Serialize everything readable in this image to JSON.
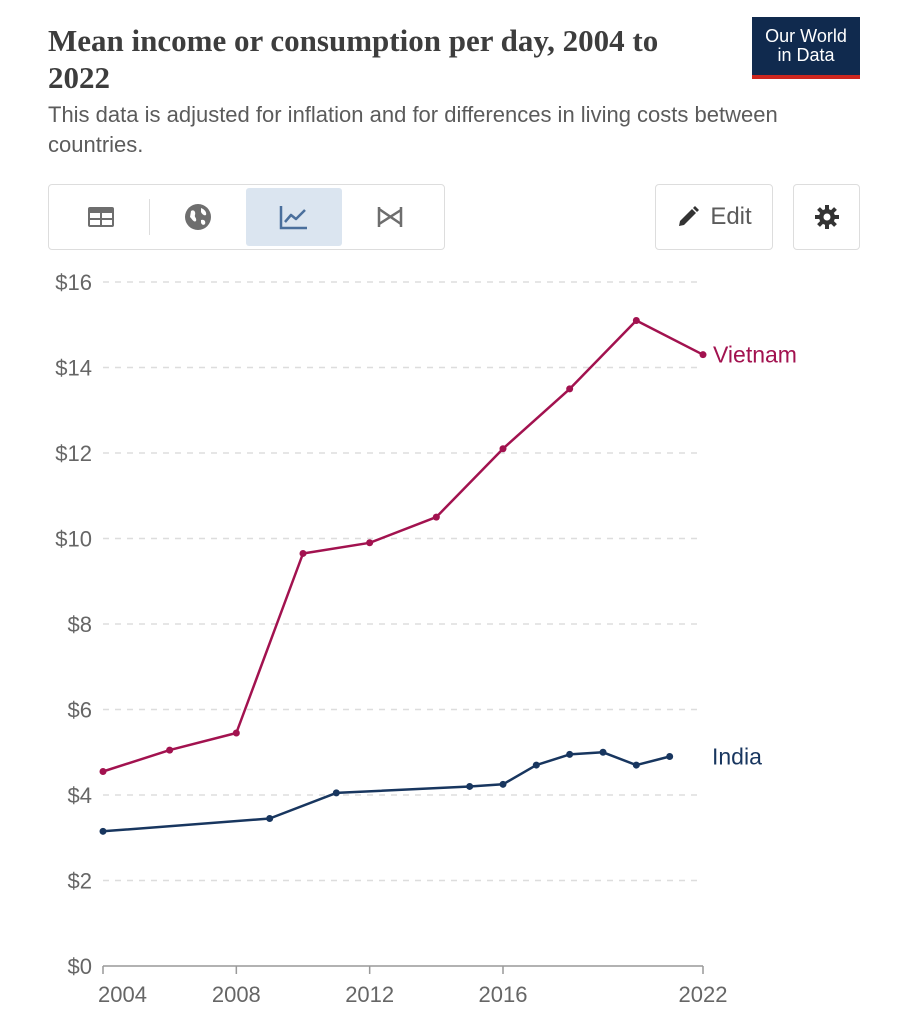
{
  "header": {
    "title": "Mean income or consumption per day, 2004 to 2022",
    "subtitle": "This data is adjusted for inflation and for differences in living costs between countries.",
    "logo_line1": "Our World",
    "logo_line2": "in Data"
  },
  "toolbar": {
    "tabs": [
      {
        "icon": "table-icon",
        "active": false
      },
      {
        "icon": "globe-icon",
        "active": false
      },
      {
        "icon": "line-chart-icon",
        "active": true
      },
      {
        "icon": "slope-chart-icon",
        "active": false
      }
    ],
    "edit_label": "Edit",
    "settings_icon": "gear-icon"
  },
  "colors": {
    "vietnam": "#a2124f",
    "india": "#18365f",
    "grid": "#dddddd",
    "tab_active": "#dbe5f0",
    "logo_bg": "#102a4e",
    "logo_accent": "#ce261e"
  },
  "chart_data": {
    "type": "line",
    "title": "Mean income or consumption per day, 2004 to 2022",
    "subtitle": "This data is adjusted for inflation and for differences in living costs between countries.",
    "xlabel": "",
    "ylabel": "",
    "xlim": [
      2004,
      2022
    ],
    "ylim": [
      0,
      16
    ],
    "x_ticks": [
      2004,
      2008,
      2012,
      2016,
      2022
    ],
    "x_tick_labels": [
      "2004",
      "2008",
      "2012",
      "2016",
      "2022"
    ],
    "y_ticks": [
      0,
      2,
      4,
      6,
      8,
      10,
      12,
      14,
      16
    ],
    "y_tick_labels": [
      "$0",
      "$2",
      "$4",
      "$6",
      "$8",
      "$10",
      "$12",
      "$14",
      "$16"
    ],
    "grid": "horizontal dashed",
    "legend": "inline labels at line ends",
    "series": [
      {
        "name": "Vietnam",
        "x": [
          2004,
          2006,
          2008,
          2010,
          2012,
          2014,
          2016,
          2018,
          2020,
          2022
        ],
        "y": [
          4.55,
          5.05,
          5.45,
          9.65,
          9.9,
          10.5,
          12.1,
          13.5,
          15.1,
          14.3
        ]
      },
      {
        "name": "India",
        "x": [
          2004,
          2009,
          2011,
          2015,
          2016,
          2017,
          2018,
          2019,
          2020,
          2021
        ],
        "y": [
          3.15,
          3.45,
          4.05,
          4.2,
          4.25,
          4.7,
          4.95,
          5.0,
          4.7,
          4.9
        ]
      }
    ]
  }
}
